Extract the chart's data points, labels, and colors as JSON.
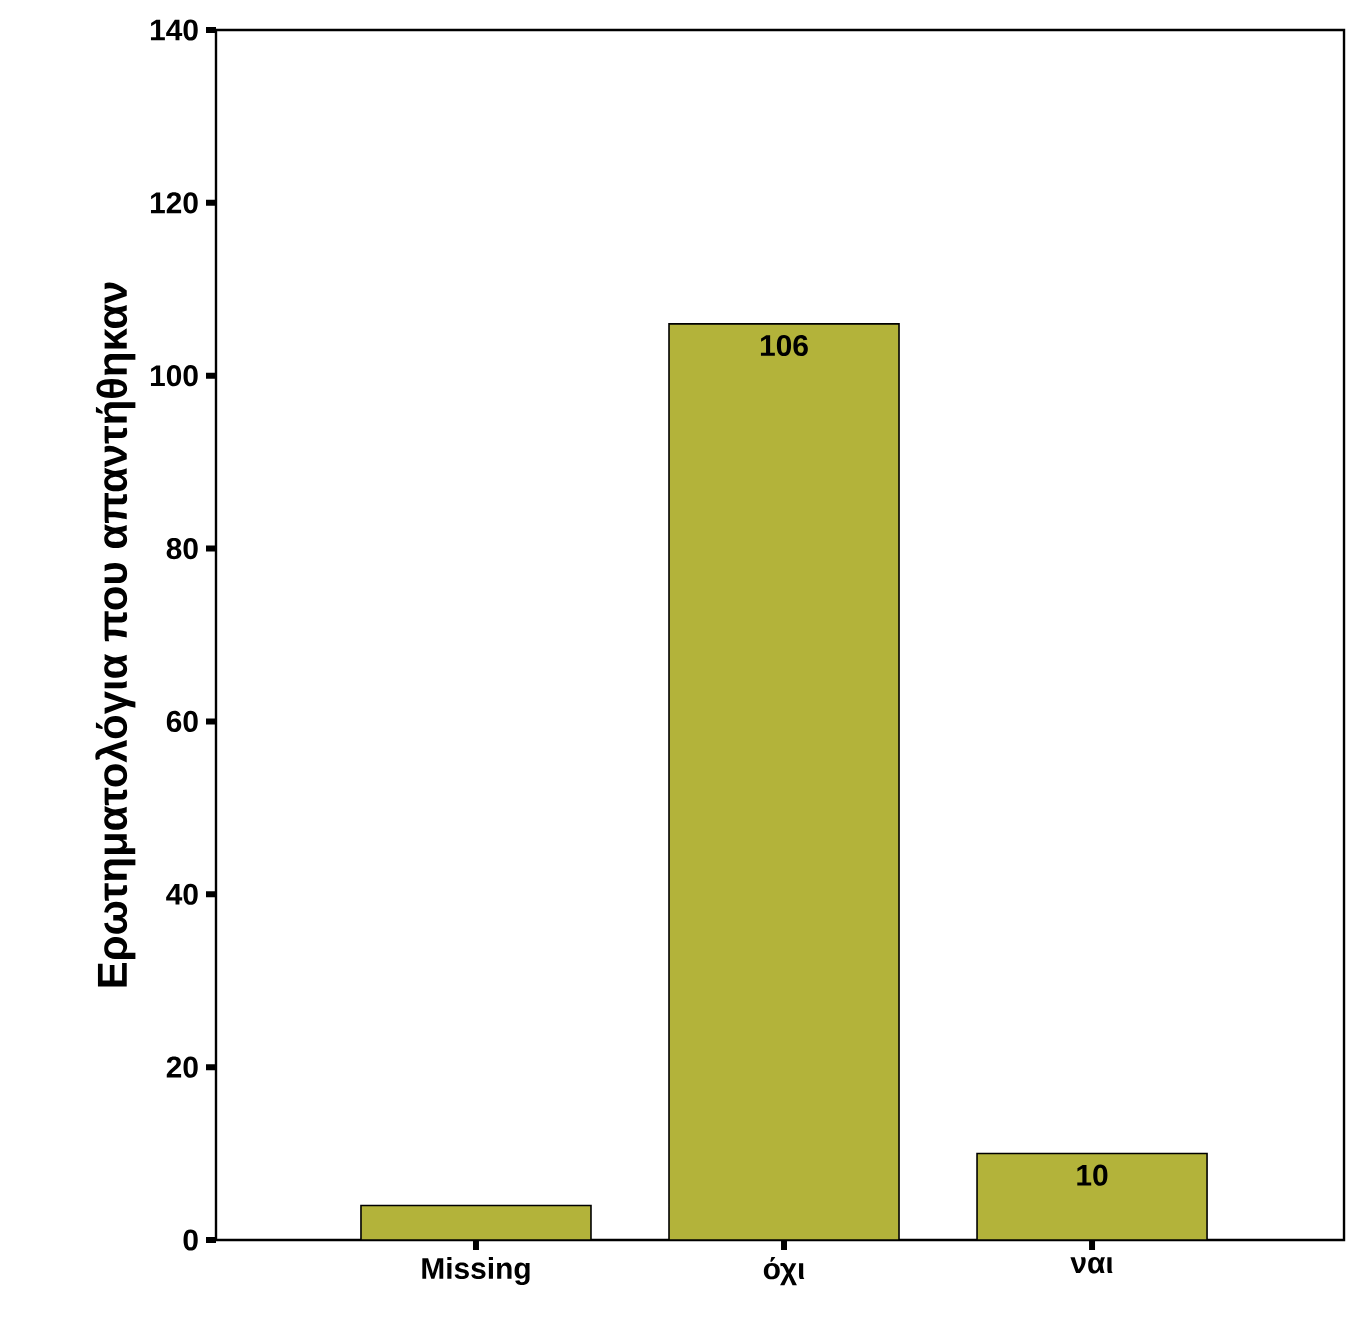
{
  "chart_data": {
    "type": "bar",
    "ylabel": "Ερωτηματολόγια που απαντήθηκαν",
    "categories": [
      "Missing",
      "όχι",
      "ναι"
    ],
    "values": [
      4,
      106,
      10
    ],
    "value_labels": [
      null,
      "106",
      "10"
    ],
    "color": "#b3b33a",
    "ylim": [
      0,
      140
    ],
    "yticks": [
      0,
      20,
      40,
      60,
      80,
      100,
      120,
      140
    ],
    "grid": false
  }
}
